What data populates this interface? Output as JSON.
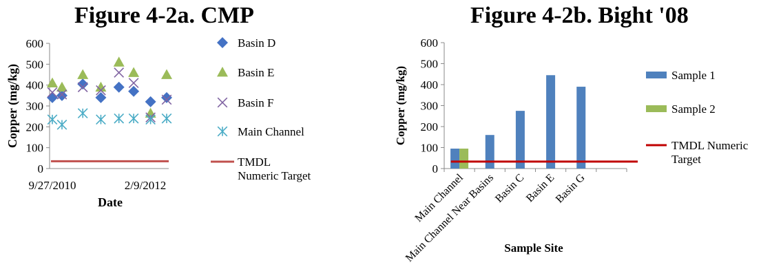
{
  "chart_data": [
    {
      "type": "scatter",
      "title": "Figure 4-2a. CMP",
      "xlabel": "Date",
      "ylabel": "Copper (mg/kg)",
      "ylim": [
        0,
        600
      ],
      "yticks": [
        "0",
        "100",
        "200",
        "300",
        "400",
        "500",
        "600"
      ],
      "xtick_labels": [
        "9/27/2010",
        "2/9/2012"
      ],
      "x": [
        "2010-09-27",
        "2010-11-15",
        "2011-03-01",
        "2011-06-01",
        "2011-09-01",
        "2011-11-15",
        "2012-02-09",
        "2012-05-01"
      ],
      "series": [
        {
          "name": "Basin D",
          "marker": "diamond",
          "color": "#4472C4",
          "values": [
            340,
            350,
            405,
            340,
            390,
            370,
            320,
            340
          ]
        },
        {
          "name": "Basin E",
          "marker": "triangle",
          "color": "#9BBB59",
          "values": [
            410,
            390,
            450,
            390,
            510,
            460,
            265,
            450
          ]
        },
        {
          "name": "Basin F",
          "marker": "x",
          "color": "#8064A2",
          "values": [
            365,
            355,
            390,
            375,
            460,
            410,
            245,
            330
          ]
        },
        {
          "name": "Main Channel",
          "marker": "asterisk",
          "color": "#4BACC6",
          "values": [
            235,
            210,
            265,
            235,
            240,
            240,
            235,
            240
          ]
        },
        {
          "name": "TMDL Numeric Target",
          "marker": "line",
          "color": "#C0504D",
          "values": [
            35,
            35,
            35,
            35,
            35,
            35,
            35,
            35
          ]
        }
      ],
      "legend_placement": "right"
    },
    {
      "type": "bar",
      "title": "Figure 4-2b. Bight '08",
      "xlabel": "Sample Site",
      "ylabel": "Copper (mg/kg)",
      "ylim": [
        0,
        600
      ],
      "yticks": [
        "0",
        "100",
        "200",
        "300",
        "400",
        "500",
        "600"
      ],
      "categories": [
        "Main Channel",
        "Main Channel Near Basins",
        "Basin C",
        "Basin E",
        "Basin G"
      ],
      "series": [
        {
          "name": "Sample 1",
          "color": "#4F81BD",
          "values": [
            95,
            160,
            275,
            445,
            390
          ]
        },
        {
          "name": "Sample 2",
          "color": "#9BBB59",
          "values": [
            95,
            null,
            null,
            null,
            null
          ]
        },
        {
          "name": "TMDL Numeric Target",
          "color": "#C00000",
          "values": [
            33,
            33,
            33,
            33,
            33
          ]
        }
      ],
      "legend_placement": "right"
    }
  ]
}
